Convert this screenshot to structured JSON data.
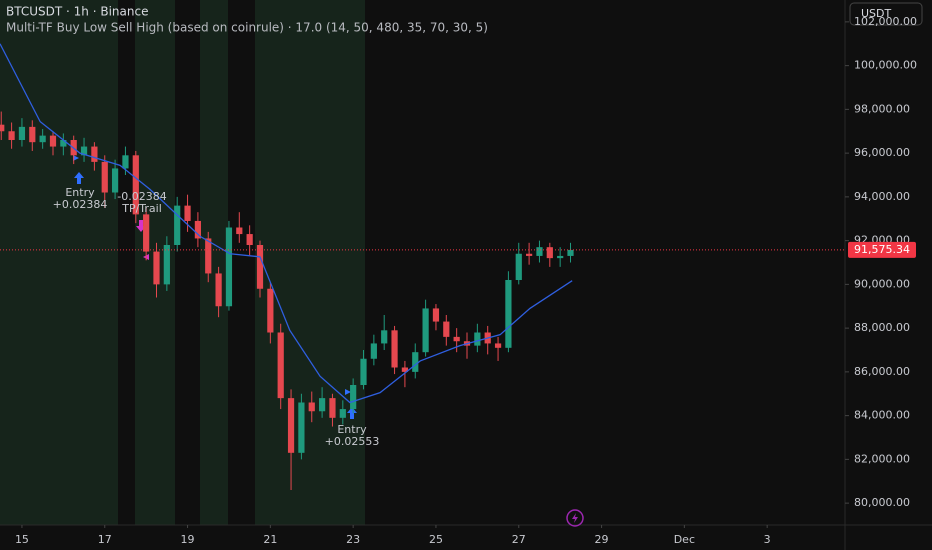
{
  "toolbar": {
    "currency": "USDT"
  },
  "chart_data": {
    "type": "candlestick",
    "title": "BTCUSDT · 1h · Binance",
    "subtitle": "Multi-TF Buy Low Sell High (based on coinrule) · 17.0 (14, 50, 480, 35, 70, 30, 5)",
    "up_color": "#1f9a7e",
    "down_color": "#e5484f",
    "x": [
      14.5,
      14.75,
      15,
      15.25,
      15.5,
      15.75,
      16,
      16.25,
      16.5,
      16.75,
      17,
      17.25,
      17.5,
      17.75,
      18,
      18.25,
      18.5,
      18.75,
      19,
      19.25,
      19.5,
      19.75,
      20,
      20.25,
      20.5,
      20.75,
      21,
      21.25,
      21.5,
      21.75,
      22,
      22.25,
      22.5,
      22.75,
      23,
      23.25,
      23.5,
      23.75,
      24,
      24.25,
      24.5,
      24.75,
      25,
      25.25,
      25.5,
      25.75,
      26,
      26.25,
      26.5,
      26.75,
      27,
      27.25,
      27.5,
      27.75,
      28,
      28.25
    ],
    "open": [
      97300,
      97000,
      96600,
      97200,
      96500,
      96800,
      96300,
      96600,
      95900,
      96300,
      95600,
      94200,
      95300,
      95900,
      93200,
      91500,
      90000,
      91800,
      93600,
      92900,
      92100,
      90500,
      89000,
      92600,
      92300,
      91800,
      89800,
      87800,
      84800,
      82300,
      84600,
      84200,
      84800,
      83900,
      84300,
      85400,
      86600,
      87300,
      87900,
      86200,
      86000,
      86900,
      88900,
      88300,
      87600,
      87400,
      87200,
      87800,
      87300,
      87100,
      90200,
      91400,
      91300,
      91700,
      91200,
      91300
    ],
    "high": [
      97900,
      97400,
      97600,
      97500,
      97100,
      97000,
      96900,
      96800,
      96700,
      96500,
      95900,
      95700,
      96300,
      96100,
      93500,
      91900,
      92200,
      94000,
      94100,
      93300,
      92400,
      90800,
      92900,
      93300,
      92700,
      92000,
      90100,
      88200,
      85200,
      85000,
      85100,
      85300,
      85000,
      84700,
      85700,
      87000,
      87700,
      88600,
      88100,
      86500,
      87300,
      89300,
      89100,
      88600,
      88000,
      87800,
      88200,
      88100,
      87600,
      90600,
      91900,
      91900,
      92000,
      91900,
      91700,
      91900
    ],
    "low": [
      96600,
      96200,
      96300,
      96100,
      96200,
      95900,
      95900,
      95500,
      95600,
      95200,
      93500,
      93900,
      95000,
      92800,
      91100,
      89400,
      89700,
      91500,
      92400,
      91700,
      90100,
      88500,
      88800,
      91900,
      91300,
      89400,
      87300,
      84300,
      80600,
      82000,
      83700,
      83900,
      83500,
      83600,
      84100,
      85200,
      86300,
      87000,
      85900,
      85300,
      85700,
      86700,
      87900,
      87200,
      86900,
      86600,
      86900,
      86800,
      86500,
      86900,
      90000,
      90900,
      91000,
      90800,
      90800,
      91000
    ],
    "close": [
      97000,
      96600,
      97200,
      96500,
      96800,
      96300,
      96600,
      95900,
      96300,
      95600,
      94200,
      95300,
      95900,
      93200,
      91500,
      90000,
      91800,
      93600,
      92900,
      92100,
      90500,
      89000,
      92600,
      92300,
      91800,
      89800,
      87800,
      84800,
      82300,
      84600,
      84200,
      84800,
      83900,
      84300,
      85400,
      86600,
      87300,
      87900,
      86200,
      86000,
      86900,
      88900,
      88300,
      87600,
      87400,
      87200,
      87800,
      87300,
      87100,
      90200,
      91400,
      91300,
      91700,
      91200,
      91300,
      91575.34
    ],
    "line": {
      "color": "#2f5fe0",
      "x": [
        14.47,
        15.44,
        16.4,
        17.37,
        18.09,
        19.3,
        20.03,
        20.75,
        21.47,
        22.2,
        22.92,
        23.65,
        24.62,
        25.58,
        26.55,
        27.27,
        28.29
      ],
      "values": [
        101000,
        97440,
        96000,
        95440,
        94350,
        92200,
        91400,
        91260,
        87900,
        85800,
        84600,
        85050,
        86500,
        87200,
        87700,
        88900,
        90170
      ]
    },
    "last_price": {
      "value": 91575.34,
      "label": "91,575.34"
    },
    "last_price_color": "#f23645",
    "annotations": [
      [
        "Entry",
        "+0.02384"
      ],
      [
        "-0.02384",
        "TP/Trail"
      ],
      [
        "Entry",
        "+0.02553"
      ]
    ],
    "xlim": [
      14.47,
      34.88
    ],
    "xticks": [
      15,
      17,
      19,
      21,
      23,
      25,
      27,
      29,
      {
        "value": 31,
        "label": "Dec"
      },
      {
        "value": 33,
        "label": "3"
      }
    ],
    "ylim": [
      79000,
      103000
    ],
    "yticks": [
      {
        "value": 80000,
        "label": "80,000.00"
      },
      {
        "value": 82000,
        "label": "82,000.00"
      },
      {
        "value": 84000,
        "label": "84,000.00"
      },
      {
        "value": 86000,
        "label": "86,000.00"
      },
      {
        "value": 88000,
        "label": "88,000.00"
      },
      {
        "value": 90000,
        "label": "90,000.00"
      },
      {
        "value": 92000,
        "label": "92,000.00"
      },
      {
        "value": 94000,
        "label": "94,000.00"
      },
      {
        "value": 96000,
        "label": "96,000.00"
      },
      {
        "value": 98000,
        "label": "98,000.00"
      },
      {
        "value": 100000,
        "label": "100,000.00"
      },
      {
        "value": 102000,
        "label": "102,000.00"
      }
    ]
  }
}
